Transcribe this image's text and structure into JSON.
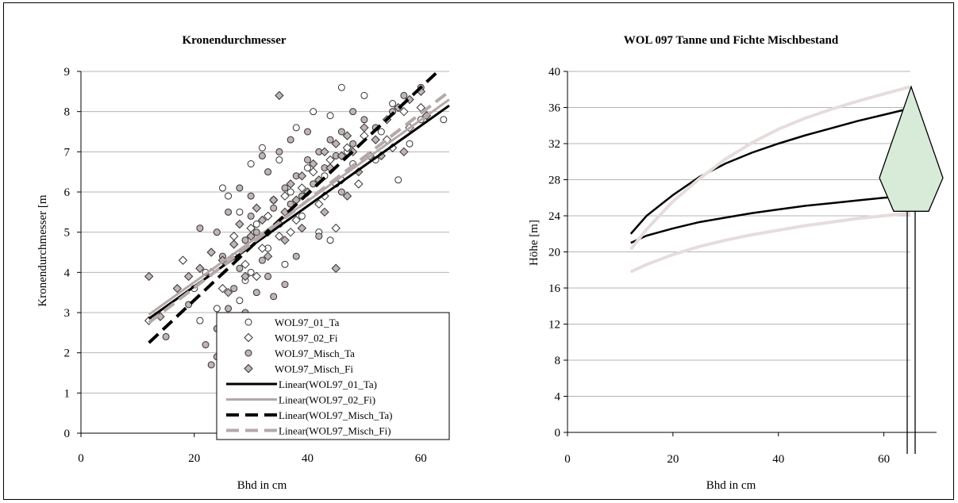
{
  "chart_data": [
    {
      "type": "scatter",
      "title": "Kronendurchmesser",
      "xlabel": "Bhd in cm",
      "ylabel": "Kronendurchmesser [m",
      "xlim": [
        0,
        65
      ],
      "ylim": [
        0,
        9
      ],
      "xticks": [
        "0",
        "20",
        "40",
        "60"
      ],
      "yticks": [
        "0",
        "1",
        "2",
        "3",
        "4",
        "5",
        "6",
        "7",
        "8",
        "9"
      ],
      "grid": "horizontal",
      "legend_position": "bottom-right",
      "series": [
        {
          "name": "WOL97_01_Ta",
          "kind": "points",
          "marker": "circle-open",
          "color": "#ffffff",
          "points": [
            [
              25,
              6.1
            ],
            [
              26,
              5.9
            ],
            [
              28,
              5.5
            ],
            [
              30,
              6.7
            ],
            [
              32,
              7.1
            ],
            [
              35,
              6.8
            ],
            [
              38,
              7.6
            ],
            [
              41,
              8.0
            ],
            [
              44,
              7.9
            ],
            [
              46,
              8.6
            ],
            [
              50,
              8.4
            ],
            [
              55,
              8.2
            ],
            [
              60,
              7.8
            ],
            [
              64,
              7.8
            ],
            [
              22,
              4.0
            ],
            [
              24,
              3.1
            ],
            [
              26,
              2.7
            ],
            [
              28,
              3.3
            ],
            [
              30,
              4.0
            ],
            [
              33,
              4.6
            ],
            [
              36,
              4.2
            ],
            [
              39,
              5.4
            ],
            [
              42,
              5.0
            ],
            [
              45,
              6.2
            ],
            [
              48,
              6.7
            ],
            [
              52,
              6.8
            ],
            [
              56,
              6.3
            ],
            [
              58,
              7.2
            ],
            [
              20,
              3.6
            ],
            [
              27,
              4.4
            ],
            [
              31,
              5.2
            ],
            [
              34,
              5.8
            ],
            [
              37,
              6.0
            ],
            [
              40,
              6.6
            ],
            [
              43,
              6.4
            ],
            [
              47,
              7.0
            ],
            [
              53,
              7.5
            ],
            [
              21,
              2.8
            ],
            [
              29,
              3.8
            ],
            [
              44,
              4.8
            ]
          ]
        },
        {
          "name": "WOL97_02_Fi",
          "kind": "points",
          "marker": "diamond-open",
          "color": "#ffffff",
          "points": [
            [
              12,
              2.8
            ],
            [
              18,
              4.3
            ],
            [
              23,
              4.0
            ],
            [
              27,
              4.9
            ],
            [
              30,
              5.1
            ],
            [
              33,
              5.4
            ],
            [
              36,
              5.9
            ],
            [
              39,
              6.1
            ],
            [
              41,
              6.5
            ],
            [
              44,
              6.8
            ],
            [
              47,
              7.1
            ],
            [
              50,
              7.4
            ],
            [
              54,
              7.3
            ],
            [
              57,
              8.0
            ],
            [
              60,
              8.1
            ],
            [
              25,
              3.6
            ],
            [
              29,
              4.2
            ],
            [
              32,
              4.6
            ],
            [
              35,
              4.9
            ],
            [
              38,
              5.3
            ],
            [
              42,
              5.7
            ],
            [
              46,
              6.3
            ],
            [
              51,
              6.9
            ],
            [
              55,
              7.1
            ],
            [
              31,
              3.9
            ],
            [
              37,
              5.0
            ],
            [
              43,
              5.9
            ],
            [
              49,
              6.2
            ],
            [
              58,
              7.6
            ],
            [
              45,
              5.1
            ]
          ]
        },
        {
          "name": "WOL97_Misch_Ta",
          "kind": "points",
          "marker": "circle-gray",
          "color": "#c0b4b4",
          "points": [
            [
              15,
              2.4
            ],
            [
              19,
              3.2
            ],
            [
              22,
              2.2
            ],
            [
              23,
              1.7
            ],
            [
              24,
              2.6
            ],
            [
              26,
              3.1
            ],
            [
              27,
              3.6
            ],
            [
              28,
              4.1
            ],
            [
              29,
              4.8
            ],
            [
              30,
              5.4
            ],
            [
              31,
              5.0
            ],
            [
              32,
              4.3
            ],
            [
              33,
              3.9
            ],
            [
              34,
              5.6
            ],
            [
              35,
              5.2
            ],
            [
              36,
              6.1
            ],
            [
              37,
              5.7
            ],
            [
              38,
              6.4
            ],
            [
              39,
              5.9
            ],
            [
              40,
              6.8
            ],
            [
              41,
              6.2
            ],
            [
              42,
              7.0
            ],
            [
              43,
              6.6
            ],
            [
              44,
              7.3
            ],
            [
              45,
              6.9
            ],
            [
              46,
              7.5
            ],
            [
              48,
              7.2
            ],
            [
              50,
              7.8
            ],
            [
              52,
              7.6
            ],
            [
              55,
              8.0
            ],
            [
              57,
              8.4
            ],
            [
              60,
              8.6
            ],
            [
              24,
              5.0
            ],
            [
              26,
              5.5
            ],
            [
              28,
              6.1
            ],
            [
              30,
              5.9
            ],
            [
              33,
              6.5
            ],
            [
              35,
              7.0
            ],
            [
              37,
              7.3
            ],
            [
              40,
              7.5
            ],
            [
              34,
              3.4
            ],
            [
              36,
              3.7
            ],
            [
              38,
              4.4
            ],
            [
              42,
              4.9
            ],
            [
              21,
              5.1
            ],
            [
              25,
              4.4
            ],
            [
              27,
              2.8
            ],
            [
              29,
              3.0
            ],
            [
              31,
              3.5
            ],
            [
              24,
              1.9
            ],
            [
              46,
              6.0
            ],
            [
              48,
              8.0
            ],
            [
              32,
              6.9
            ]
          ]
        },
        {
          "name": "WOL97_Misch_Fi",
          "kind": "points",
          "marker": "diamond-gray",
          "color": "#c0b4b4",
          "points": [
            [
              12,
              3.9
            ],
            [
              14,
              2.9
            ],
            [
              17,
              3.6
            ],
            [
              19,
              3.9
            ],
            [
              21,
              4.1
            ],
            [
              23,
              4.5
            ],
            [
              25,
              4.3
            ],
            [
              27,
              4.7
            ],
            [
              28,
              5.2
            ],
            [
              30,
              4.9
            ],
            [
              31,
              5.6
            ],
            [
              32,
              5.3
            ],
            [
              33,
              5.0
            ],
            [
              34,
              5.8
            ],
            [
              35,
              8.4
            ],
            [
              36,
              5.5
            ],
            [
              37,
              6.2
            ],
            [
              38,
              5.8
            ],
            [
              39,
              6.4
            ],
            [
              40,
              6.0
            ],
            [
              41,
              6.7
            ],
            [
              42,
              6.3
            ],
            [
              43,
              7.0
            ],
            [
              44,
              6.6
            ],
            [
              45,
              7.2
            ],
            [
              46,
              6.9
            ],
            [
              47,
              7.4
            ],
            [
              48,
              7.0
            ],
            [
              50,
              7.6
            ],
            [
              52,
              7.3
            ],
            [
              54,
              7.8
            ],
            [
              56,
              8.1
            ],
            [
              58,
              8.3
            ],
            [
              60,
              8.5
            ],
            [
              26,
              3.5
            ],
            [
              29,
              3.9
            ],
            [
              33,
              4.4
            ],
            [
              36,
              4.8
            ],
            [
              39,
              5.1
            ],
            [
              43,
              5.5
            ],
            [
              45,
              4.1
            ],
            [
              47,
              5.9
            ],
            [
              49,
              6.5
            ],
            [
              53,
              6.9
            ],
            [
              57,
              7.0
            ],
            [
              61,
              7.9
            ]
          ]
        },
        {
          "name": "Linear(WOL97_01_Ta)",
          "kind": "line",
          "style": "solid",
          "color": "#000000",
          "x": [
            12,
            65
          ],
          "y": [
            2.85,
            8.15
          ]
        },
        {
          "name": "Linear(WOL97_02_Fi)",
          "kind": "line",
          "style": "solid",
          "color": "#b4a8a8",
          "x": [
            12,
            65
          ],
          "y": [
            2.95,
            8.3
          ]
        },
        {
          "name": "Linear(WOL97_Misch_Ta)",
          "kind": "line",
          "style": "dashed",
          "color": "#000000",
          "x": [
            12,
            63
          ],
          "y": [
            2.25,
            9.0
          ]
        },
        {
          "name": "Linear(WOL97_Misch_Fi)",
          "kind": "line",
          "style": "dashed",
          "color": "#b4a8a8",
          "x": [
            12,
            65
          ],
          "y": [
            2.75,
            8.5
          ]
        }
      ]
    },
    {
      "type": "line",
      "title": "WOL 097 Tanne und Fichte Mischbestand",
      "xlabel": "Bhd in cm",
      "ylabel": "Höhe [m]",
      "xlim": [
        0,
        70
      ],
      "ylim": [
        0,
        40
      ],
      "xticks": [
        "0",
        "20",
        "40",
        "60"
      ],
      "yticks": [
        "0",
        "4",
        "8",
        "12",
        "16",
        "20",
        "24",
        "28",
        "32",
        "36",
        "40"
      ],
      "grid": "horizontal",
      "series": [
        {
          "color": "#000000",
          "x": [
            12,
            15,
            20,
            25,
            30,
            35,
            40,
            45,
            50,
            55,
            60,
            65
          ],
          "y": [
            22.0,
            24.0,
            26.3,
            28.3,
            29.8,
            31.0,
            32.0,
            32.9,
            33.7,
            34.5,
            35.2,
            35.9
          ]
        },
        {
          "color": "#000000",
          "x": [
            12,
            15,
            20,
            25,
            30,
            35,
            40,
            45,
            50,
            55,
            60,
            65
          ],
          "y": [
            21.0,
            21.8,
            22.6,
            23.3,
            23.8,
            24.3,
            24.7,
            25.1,
            25.4,
            25.7,
            26.0,
            26.2
          ]
        },
        {
          "color": "#e6dcdc",
          "x": [
            12,
            15,
            20,
            25,
            30,
            35,
            40,
            45,
            50,
            55,
            60,
            65
          ],
          "y": [
            20.3,
            22.5,
            25.6,
            28.1,
            30.3,
            32.1,
            33.6,
            34.8,
            35.8,
            36.7,
            37.5,
            38.3
          ]
        },
        {
          "color": "#e6dcdc",
          "x": [
            12,
            15,
            20,
            25,
            30,
            35,
            40,
            45,
            50,
            55,
            60,
            65
          ],
          "y": [
            17.8,
            18.6,
            19.7,
            20.6,
            21.3,
            21.9,
            22.4,
            22.9,
            23.3,
            23.7,
            24.0,
            24.3
          ]
        }
      ],
      "tree_icon": {
        "name": "fir-tree-icon",
        "fill": "#d8ead8",
        "stroke": "#000000",
        "top_y": 38.3,
        "widest_y": 28.2,
        "crown_base_y": 24.5
      }
    }
  ]
}
